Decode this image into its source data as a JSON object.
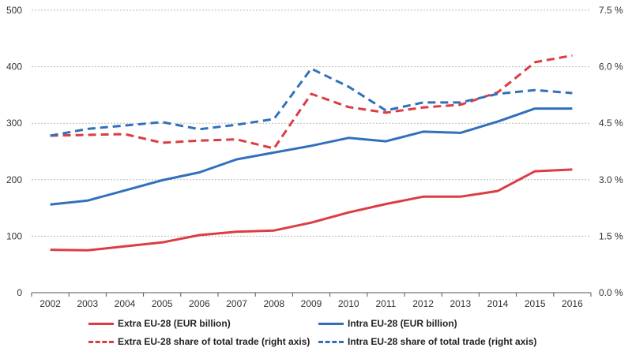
{
  "chart_data": {
    "type": "line",
    "title": "",
    "xlabel": "",
    "ylabel": "",
    "categories": [
      "2002",
      "2003",
      "2004",
      "2005",
      "2006",
      "2007",
      "2008",
      "2009",
      "2010",
      "2011",
      "2012",
      "2013",
      "2014",
      "2015",
      "2016"
    ],
    "y_left": {
      "range": [
        0,
        500
      ],
      "ticks": [
        0,
        100,
        200,
        300,
        400,
        500
      ],
      "tick_labels": [
        "0",
        "100",
        "200",
        "300",
        "400",
        "500"
      ],
      "grid": true
    },
    "y_right": {
      "range": [
        0,
        7.5
      ],
      "ticks": [
        0,
        1.5,
        3.0,
        4.5,
        6.0,
        7.5
      ],
      "tick_labels": [
        "0.0 %",
        "1.5 %",
        "3.0 %",
        "4.5 %",
        "6.0 %",
        "7.5 %"
      ]
    },
    "series": [
      {
        "name": "Extra EU-28 (EUR billion)",
        "axis": "left",
        "style": "solid",
        "color": "#dc3c44",
        "values": [
          76,
          75,
          82,
          89,
          102,
          108,
          110,
          124,
          142,
          157,
          170,
          170,
          180,
          215,
          218
        ]
      },
      {
        "name": "Intra EU-28 (EUR billion)",
        "axis": "left",
        "style": "solid",
        "color": "#3270bb",
        "values": [
          156,
          163,
          181,
          199,
          213,
          236,
          248,
          260,
          274,
          268,
          285,
          283,
          303,
          326,
          326
        ]
      },
      {
        "name": "Extra EU-28 share of total trade (right axis)",
        "axis": "right",
        "style": "dashed",
        "color": "#dc3c44",
        "values": [
          4.17,
          4.19,
          4.21,
          3.98,
          4.04,
          4.07,
          3.83,
          5.28,
          4.93,
          4.78,
          4.92,
          4.99,
          5.32,
          6.12,
          6.3
        ]
      },
      {
        "name": "Intra EU-28 share of total trade (right axis)",
        "axis": "right",
        "style": "dashed",
        "color": "#3270bb",
        "values": [
          4.17,
          4.35,
          4.44,
          4.53,
          4.34,
          4.46,
          4.61,
          5.95,
          5.47,
          4.84,
          5.05,
          5.05,
          5.28,
          5.38,
          5.3
        ]
      }
    ],
    "legend": {
      "placement": "bottom",
      "order": [
        0,
        1,
        2,
        3
      ]
    }
  }
}
